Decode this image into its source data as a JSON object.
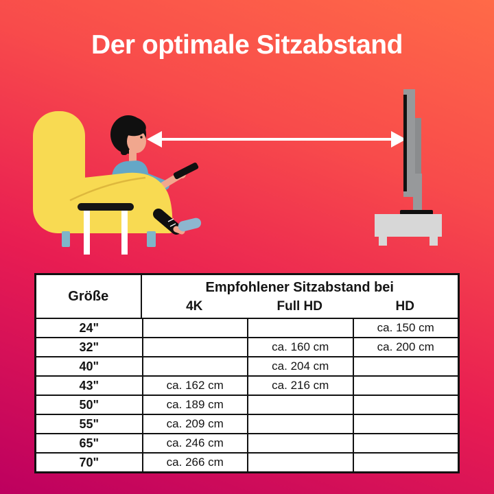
{
  "title": "Der optimale Sitzabstand",
  "chart_data": {
    "type": "table",
    "title": "Der optimale Sitzabstand",
    "size_column_header": "Größe",
    "group_header": "Empfohlener Sitzabstand bei",
    "resolution_columns": [
      "4K",
      "Full HD",
      "HD"
    ],
    "rows": [
      {
        "size": "24\"",
        "values": [
          "",
          "",
          "ca. 150 cm"
        ]
      },
      {
        "size": "32\"",
        "values": [
          "",
          "ca. 160 cm",
          "ca. 200 cm"
        ]
      },
      {
        "size": "40\"",
        "values": [
          "",
          "ca. 204 cm",
          ""
        ]
      },
      {
        "size": "43\"",
        "values": [
          "ca. 162 cm",
          "ca. 216 cm",
          ""
        ]
      },
      {
        "size": "50\"",
        "values": [
          "ca. 189 cm",
          "",
          ""
        ]
      },
      {
        "size": "55\"",
        "values": [
          "ca. 209 cm",
          "",
          ""
        ]
      },
      {
        "size": "65\"",
        "values": [
          "ca. 246 cm",
          "",
          ""
        ]
      },
      {
        "size": "70\"",
        "values": [
          "ca. 266 cm",
          "",
          ""
        ]
      }
    ]
  },
  "scene": {
    "elements": [
      "armchair",
      "person-with-remote",
      "side-table",
      "distance-arrow",
      "tv-side-view"
    ]
  },
  "colors": {
    "background_top": "#ff6a48",
    "background_bottom": "#bd005f",
    "title_text": "#ffffff",
    "armchair_yellow": "#f8da52",
    "chair_leg_teal": "#7fb5c9",
    "shirt_blue": "#64a7c7",
    "skin": "#f1a78e",
    "sock_blue": "#8db6cf",
    "arrow_white": "#ffffff",
    "tv_gray": "#97999b",
    "cabinet_gray": "#d7d7d7",
    "table_border": "#111111",
    "table_background": "#ffffff"
  }
}
